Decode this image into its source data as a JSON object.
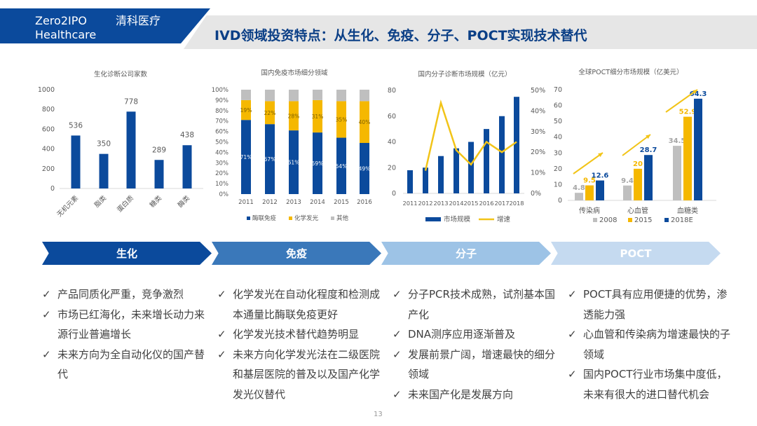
{
  "header": {
    "brand_en_1": "Zero2IPO",
    "brand_en_2": "Healthcare",
    "brand_cn": "清科医疗",
    "title": "IVD领域投资特点：从生化、免疫、分子、POCT实现技术替代"
  },
  "colors": {
    "dark_blue": "#0b4a9c",
    "yellow": "#f5b800",
    "grey": "#bfbfbf",
    "mid_blue": "#3a78ba",
    "light_blue": "#9dc3e6",
    "pale_blue": "#c5daf0"
  },
  "chart_data": [
    {
      "type": "bar",
      "title": "生化诊断公司家数",
      "categories": [
        "无机元素",
        "脂类",
        "蛋白质",
        "糖类",
        "酶类"
      ],
      "values": [
        536,
        350,
        778,
        289,
        438
      ],
      "ylim": [
        0,
        1000
      ],
      "yticks": [
        "0",
        "200",
        "400",
        "600",
        "800",
        "1000"
      ]
    },
    {
      "type": "bar",
      "stacked": true,
      "title": "国内免疫市场细分领域",
      "categories": [
        "2011",
        "2012",
        "2013",
        "2014",
        "2015",
        "2016"
      ],
      "series": [
        {
          "name": "酶联免疫",
          "values": [
            71,
            67,
            61,
            59,
            54,
            49
          ],
          "labels": [
            "71%",
            "67%",
            "61%",
            "59%",
            "54%",
            "49%"
          ]
        },
        {
          "name": "化学发光",
          "values": [
            19,
            22,
            28,
            31,
            35,
            40
          ],
          "labels": [
            "19%",
            "22%",
            "28%",
            "31%",
            "35%",
            "40%"
          ]
        },
        {
          "name": "其他",
          "values": [
            10,
            11,
            11,
            10,
            11,
            11
          ]
        }
      ],
      "ylim": [
        0,
        100
      ],
      "yticks": [
        "0%",
        "10%",
        "20%",
        "30%",
        "40%",
        "50%",
        "60%",
        "70%",
        "80%",
        "90%",
        "100%"
      ]
    },
    {
      "type": "bar+line",
      "title": "国内分子诊断市场规模（亿元）",
      "categories": [
        "2011",
        "2012",
        "2013",
        "2014",
        "2015",
        "2016",
        "2017",
        "2018"
      ],
      "series": [
        {
          "name": "市场规模",
          "values": [
            18,
            20,
            29,
            35,
            40,
            50,
            60,
            75
          ]
        },
        {
          "name": "增速",
          "values": [
            null,
            11,
            44,
            21,
            14,
            25,
            20,
            25
          ]
        }
      ],
      "ylim": [
        0,
        80
      ],
      "y2lim": [
        0,
        50
      ],
      "yticks": [
        "0",
        "20",
        "40",
        "60",
        "80"
      ],
      "y2ticks": [
        "0%",
        "10%",
        "20%",
        "30%",
        "40%",
        "50%"
      ]
    },
    {
      "type": "bar",
      "title": "全球POCT细分市场规模（亿美元）",
      "categories": [
        "传染病",
        "心血管",
        "血糖类"
      ],
      "series": [
        {
          "name": "2008",
          "values": [
            4.8,
            9.4,
            34.5
          ],
          "labels": [
            "4.8",
            "9.4",
            "34.5"
          ]
        },
        {
          "name": "2015",
          "values": [
            9.5,
            20,
            52.9
          ],
          "labels": [
            "9.5",
            "20",
            "52.9"
          ]
        },
        {
          "name": "2018E",
          "values": [
            12.6,
            28.7,
            64.3
          ],
          "labels": [
            "12.6",
            "28.7",
            "64.3"
          ]
        }
      ],
      "ylim": [
        0,
        70
      ],
      "yticks": [
        "0",
        "10",
        "20",
        "30",
        "40",
        "50",
        "60",
        "70"
      ]
    }
  ],
  "stages": [
    {
      "label": "生化",
      "bullets": [
        "产品同质化严重，竞争激烈",
        "市场已红海化，未来增长动力来源行业普遍增长",
        "未来方向为全自动化仪的国产替代"
      ]
    },
    {
      "label": "免疫",
      "bullets": [
        "化学发光在自动化程度和检测成本通量比酶联免疫更好",
        "化学发光技术替代趋势明显",
        "未来方向化学发光法在二级医院和基层医院的普及以及国产化学发光仪替代"
      ]
    },
    {
      "label": "分子",
      "bullets": [
        "分子PCR技术成熟，试剂基本国产化",
        "DNA测序应用逐渐普及",
        "发展前景广阔，增速最快的细分领域",
        "未来国产化是发展方向"
      ]
    },
    {
      "label": "POCT",
      "bullets": [
        "POCT具有应用便捷的优势，渗透能力强",
        "心血管和传染病为增速最快的子领域",
        "国内POCT行业市场集中度低，未来有很大的进口替代机会"
      ]
    }
  ],
  "check_icon": "✓",
  "page_number": "13"
}
